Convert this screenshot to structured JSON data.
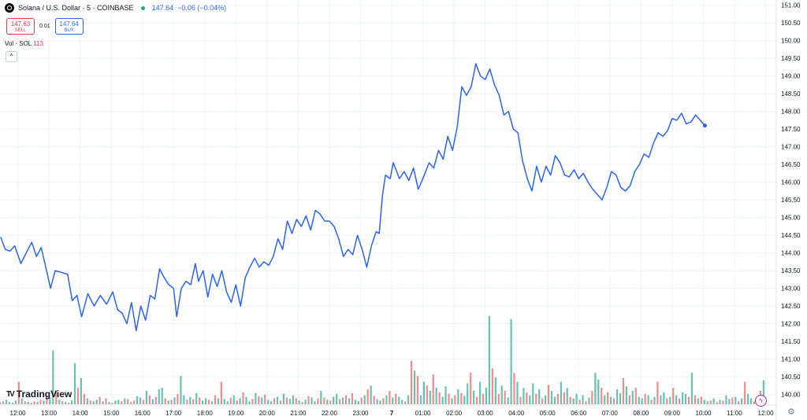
{
  "legend": {
    "symbol": "Solana / U.S. Dollar · 5 · COINBASE",
    "last": "147.64",
    "change": "−0.06 (−0.04%)"
  },
  "trade": {
    "sell_price": "147.63",
    "sell_label": "SELL",
    "spread": "0.01",
    "buy_price": "147.64",
    "buy_label": "BUY"
  },
  "volume": {
    "label": "Vol · SOL",
    "value": "113"
  },
  "brand": {
    "name": "TradingView"
  },
  "icons": {
    "logo": "sol-coin-icon",
    "brand": "tradingview-icon",
    "settings": "gear-icon",
    "collapse": "chevron-up-icon",
    "lightning": "lightning-icon"
  },
  "colors": {
    "line": "#2962ff",
    "vol_up": "#66c2b5",
    "vol_down": "#f28b8b",
    "live": "#22ab94"
  },
  "chart_data": {
    "type": "line",
    "x_unit": "hour",
    "xlim": [
      11.43,
      36.34
    ],
    "ylim": [
      139.7,
      151.15
    ],
    "grid": true,
    "x_ticks": [
      {
        "h": 12,
        "label": "12:00"
      },
      {
        "h": 13,
        "label": "13:00"
      },
      {
        "h": 14,
        "label": "14:00"
      },
      {
        "h": 15,
        "label": "15:00"
      },
      {
        "h": 16,
        "label": "16:00"
      },
      {
        "h": 17,
        "label": "17:00"
      },
      {
        "h": 18,
        "label": "18:00"
      },
      {
        "h": 19,
        "label": "19:00"
      },
      {
        "h": 20,
        "label": "20:00"
      },
      {
        "h": 21,
        "label": "21:00"
      },
      {
        "h": 22,
        "label": "22:00"
      },
      {
        "h": 23,
        "label": "23:00"
      },
      {
        "h": 24,
        "label": "7"
      },
      {
        "h": 25,
        "label": "01:00"
      },
      {
        "h": 26,
        "label": "02:00"
      },
      {
        "h": 27,
        "label": "03:00"
      },
      {
        "h": 28,
        "label": "04:00"
      },
      {
        "h": 29,
        "label": "05:00"
      },
      {
        "h": 30,
        "label": "06:00"
      },
      {
        "h": 31,
        "label": "07:00"
      },
      {
        "h": 32,
        "label": "08:00"
      },
      {
        "h": 33,
        "label": "09:00"
      },
      {
        "h": 34,
        "label": "10:00"
      },
      {
        "h": 35,
        "label": "11:00"
      },
      {
        "h": 36,
        "label": "12:00"
      }
    ],
    "y_ticks": [
      "140.00",
      "140.50",
      "141.00",
      "141.50",
      "142.00",
      "142.50",
      "143.00",
      "143.50",
      "144.00",
      "144.50",
      "145.00",
      "145.50",
      "146.00",
      "146.50",
      "147.00",
      "147.50",
      "148.00",
      "148.50",
      "149.00",
      "149.50",
      "150.00",
      "150.50",
      "151.00"
    ],
    "price": [
      [
        11.45,
        144.45
      ],
      [
        11.6,
        144.1
      ],
      [
        11.75,
        144.05
      ],
      [
        11.9,
        144.2
      ],
      [
        12.1,
        143.7
      ],
      [
        12.3,
        144.05
      ],
      [
        12.45,
        144.3
      ],
      [
        12.6,
        143.9
      ],
      [
        12.75,
        144.15
      ],
      [
        12.9,
        143.6
      ],
      [
        13.05,
        143.0
      ],
      [
        13.2,
        143.5
      ],
      [
        13.4,
        143.45
      ],
      [
        13.6,
        143.4
      ],
      [
        13.75,
        142.65
      ],
      [
        13.9,
        142.8
      ],
      [
        14.05,
        142.2
      ],
      [
        14.25,
        142.85
      ],
      [
        14.45,
        142.5
      ],
      [
        14.65,
        142.8
      ],
      [
        14.85,
        142.55
      ],
      [
        15.05,
        142.9
      ],
      [
        15.2,
        142.4
      ],
      [
        15.35,
        142.3
      ],
      [
        15.5,
        142.0
      ],
      [
        15.65,
        142.6
      ],
      [
        15.8,
        141.8
      ],
      [
        15.95,
        142.5
      ],
      [
        16.1,
        142.1
      ],
      [
        16.25,
        142.8
      ],
      [
        16.4,
        142.7
      ],
      [
        16.55,
        143.55
      ],
      [
        16.7,
        143.3
      ],
      [
        16.85,
        143.1
      ],
      [
        17.0,
        143.0
      ],
      [
        17.1,
        142.2
      ],
      [
        17.25,
        143.0
      ],
      [
        17.4,
        143.2
      ],
      [
        17.55,
        143.1
      ],
      [
        17.7,
        143.7
      ],
      [
        17.8,
        143.2
      ],
      [
        17.95,
        143.5
      ],
      [
        18.1,
        142.75
      ],
      [
        18.25,
        143.4
      ],
      [
        18.4,
        143.05
      ],
      [
        18.55,
        143.5
      ],
      [
        18.7,
        142.9
      ],
      [
        18.85,
        142.6
      ],
      [
        19.0,
        143.1
      ],
      [
        19.15,
        142.5
      ],
      [
        19.3,
        143.3
      ],
      [
        19.45,
        143.6
      ],
      [
        19.6,
        143.85
      ],
      [
        19.75,
        143.6
      ],
      [
        19.9,
        143.75
      ],
      [
        20.05,
        143.65
      ],
      [
        20.2,
        143.9
      ],
      [
        20.35,
        144.4
      ],
      [
        20.5,
        144.1
      ],
      [
        20.65,
        144.9
      ],
      [
        20.8,
        144.55
      ],
      [
        20.95,
        144.95
      ],
      [
        21.1,
        144.75
      ],
      [
        21.25,
        145.05
      ],
      [
        21.4,
        144.65
      ],
      [
        21.55,
        145.2
      ],
      [
        21.7,
        145.1
      ],
      [
        21.85,
        144.9
      ],
      [
        22.0,
        144.9
      ],
      [
        22.15,
        144.75
      ],
      [
        22.3,
        144.4
      ],
      [
        22.45,
        143.9
      ],
      [
        22.6,
        144.1
      ],
      [
        22.75,
        143.95
      ],
      [
        22.9,
        144.5
      ],
      [
        23.05,
        144.1
      ],
      [
        23.2,
        143.6
      ],
      [
        23.35,
        144.2
      ],
      [
        23.5,
        144.6
      ],
      [
        23.6,
        144.55
      ],
      [
        23.7,
        145.6
      ],
      [
        23.8,
        146.2
      ],
      [
        23.95,
        146.1
      ],
      [
        24.05,
        146.55
      ],
      [
        24.25,
        146.1
      ],
      [
        24.4,
        146.3
      ],
      [
        24.55,
        146.05
      ],
      [
        24.7,
        146.4
      ],
      [
        24.85,
        145.8
      ],
      [
        25.0,
        146.1
      ],
      [
        25.2,
        146.55
      ],
      [
        25.35,
        146.4
      ],
      [
        25.5,
        146.9
      ],
      [
        25.65,
        146.65
      ],
      [
        25.8,
        147.3
      ],
      [
        25.95,
        146.9
      ],
      [
        26.1,
        147.55
      ],
      [
        26.25,
        148.7
      ],
      [
        26.4,
        148.45
      ],
      [
        26.55,
        148.7
      ],
      [
        26.7,
        149.35
      ],
      [
        26.85,
        149.0
      ],
      [
        27.0,
        148.9
      ],
      [
        27.15,
        149.2
      ],
      [
        27.3,
        148.75
      ],
      [
        27.45,
        148.45
      ],
      [
        27.6,
        147.9
      ],
      [
        27.75,
        148.0
      ],
      [
        27.9,
        147.5
      ],
      [
        28.05,
        147.4
      ],
      [
        28.2,
        146.6
      ],
      [
        28.35,
        146.1
      ],
      [
        28.5,
        145.75
      ],
      [
        28.65,
        146.45
      ],
      [
        28.8,
        146.0
      ],
      [
        28.95,
        146.45
      ],
      [
        29.1,
        146.2
      ],
      [
        29.25,
        146.75
      ],
      [
        29.4,
        146.55
      ],
      [
        29.55,
        146.2
      ],
      [
        29.7,
        146.15
      ],
      [
        29.85,
        146.35
      ],
      [
        30.0,
        146.1
      ],
      [
        30.15,
        146.25
      ],
      [
        30.3,
        146.0
      ],
      [
        30.45,
        145.8
      ],
      [
        30.6,
        145.65
      ],
      [
        30.75,
        145.5
      ],
      [
        30.9,
        145.85
      ],
      [
        31.05,
        146.3
      ],
      [
        31.2,
        146.2
      ],
      [
        31.35,
        145.85
      ],
      [
        31.5,
        145.75
      ],
      [
        31.65,
        145.9
      ],
      [
        31.8,
        146.3
      ],
      [
        31.95,
        146.5
      ],
      [
        32.1,
        146.8
      ],
      [
        32.25,
        146.7
      ],
      [
        32.4,
        147.1
      ],
      [
        32.55,
        147.4
      ],
      [
        32.7,
        147.3
      ],
      [
        32.85,
        147.45
      ],
      [
        33.0,
        147.8
      ],
      [
        33.15,
        147.75
      ],
      [
        33.3,
        147.95
      ],
      [
        33.45,
        147.65
      ],
      [
        33.6,
        147.7
      ],
      [
        33.75,
        147.9
      ],
      [
        33.9,
        147.75
      ],
      [
        34.05,
        147.6
      ]
    ],
    "volume": {
      "x_start": 11.43,
      "x_step": 0.1,
      "values": [
        3,
        4,
        6,
        3,
        2,
        5,
        30,
        8,
        4,
        3,
        2,
        4,
        3,
        6,
        5,
        12,
        9,
        72,
        18,
        6,
        4,
        3,
        2,
        5,
        55,
        22,
        35,
        14,
        8,
        5,
        4,
        6,
        10,
        4,
        8,
        3,
        2,
        5,
        6,
        4,
        8,
        7,
        3,
        5,
        11,
        9,
        6,
        18,
        12,
        7,
        10,
        20,
        22,
        8,
        5,
        6,
        9,
        14,
        38,
        12,
        6,
        10,
        7,
        15,
        9,
        5,
        8,
        6,
        4,
        12,
        8,
        30,
        7,
        4,
        9,
        12,
        5,
        8,
        16,
        10,
        4,
        7,
        15,
        11,
        9,
        13,
        6,
        4,
        8,
        10,
        5,
        14,
        9,
        7,
        12,
        8,
        5,
        3,
        6,
        11,
        9,
        4,
        8,
        18,
        9,
        6,
        5,
        10,
        14,
        7,
        9,
        12,
        8,
        15,
        6,
        4,
        9,
        12,
        20,
        25,
        11,
        7,
        5,
        8,
        12,
        18,
        9,
        14,
        10,
        6,
        4,
        12,
        58,
        45,
        38,
        12,
        30,
        25,
        18,
        40,
        22,
        16,
        10,
        24,
        14,
        8,
        12,
        20,
        15,
        11,
        28,
        42,
        18,
        10,
        30,
        14,
        22,
        118,
        48,
        36,
        14,
        25,
        18,
        9,
        114,
        42,
        30,
        10,
        22,
        16,
        12,
        28,
        14,
        20,
        8,
        12,
        26,
        18,
        10,
        14,
        30,
        16,
        22,
        10,
        8,
        14,
        6,
        12,
        4,
        9,
        18,
        42,
        33,
        22,
        12,
        16,
        10,
        8,
        20,
        15,
        35,
        24,
        12,
        18,
        22,
        10,
        8,
        14,
        12,
        6,
        10,
        30,
        12,
        16,
        8,
        10,
        22,
        12,
        8,
        16,
        14,
        10,
        42,
        12,
        8,
        10,
        6,
        4,
        5,
        8,
        3,
        6,
        5,
        12,
        7,
        9,
        10,
        4,
        8,
        30,
        14,
        8,
        4,
        5,
        18,
        32,
        36,
        14,
        8,
        10,
        12,
        7,
        5,
        8,
        12,
        6,
        10,
        9,
        4,
        5,
        8,
        6,
        3,
        4,
        5,
        6,
        8,
        2,
        3
      ],
      "up_pattern": [
        1,
        0,
        1,
        1,
        0,
        1,
        0
      ]
    }
  }
}
